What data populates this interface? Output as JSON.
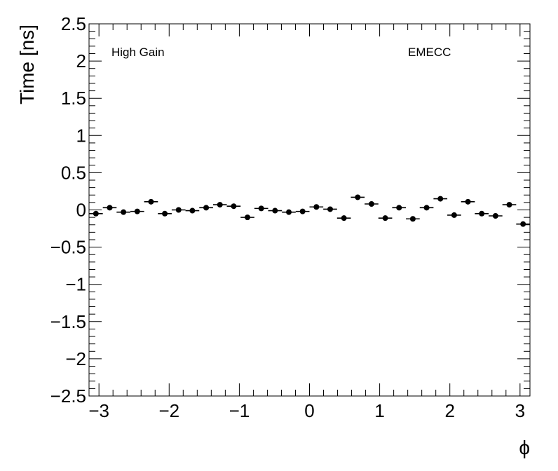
{
  "chart_data": {
    "type": "scatter",
    "title": "",
    "xlabel": "ϕ",
    "ylabel": "Time [ns]",
    "xlim": [
      -3.1416,
      3.1416
    ],
    "ylim": [
      -2.5,
      2.5
    ],
    "x_major_ticks": [
      -3,
      -2,
      -1,
      0,
      1,
      2,
      3
    ],
    "x_tick_labels": [
      "−3",
      "−2",
      "−1",
      "0",
      "1",
      "2",
      "3"
    ],
    "y_major_ticks": [
      -2.5,
      -2,
      -1.5,
      -1,
      -0.5,
      0,
      0.5,
      1,
      1.5,
      2,
      2.5
    ],
    "y_tick_labels": [
      "−2.5",
      "−2",
      "−1.5",
      "−1",
      "−0.5",
      "0",
      "0.5",
      "1",
      "1.5",
      "2",
      "2.5"
    ],
    "annotations": [
      "High Gain",
      "EMECC"
    ],
    "grid": false,
    "series": [
      {
        "marker": "filled-circle",
        "color": "#000000",
        "x_bin_half_width": 0.0982,
        "x": [
          -3.0434,
          -2.847,
          -2.6507,
          -2.4543,
          -2.258,
          -2.0617,
          -1.8653,
          -1.669,
          -1.4726,
          -1.2763,
          -1.0799,
          -0.8836,
          -0.6872,
          -0.4909,
          -0.2945,
          -0.0982,
          0.0982,
          0.2945,
          0.4909,
          0.6872,
          0.8836,
          1.0799,
          1.2763,
          1.4726,
          1.669,
          1.8653,
          2.0617,
          2.258,
          2.4543,
          2.6507,
          2.847,
          3.0434
        ],
        "values": [
          -0.05,
          0.03,
          -0.03,
          -0.02,
          0.11,
          -0.05,
          0.0,
          -0.01,
          0.03,
          0.07,
          0.05,
          -0.1,
          0.02,
          -0.01,
          -0.03,
          -0.02,
          0.04,
          0.01,
          -0.11,
          0.17,
          0.08,
          -0.11,
          0.03,
          -0.12,
          0.03,
          0.15,
          -0.07,
          0.11,
          -0.05,
          -0.08,
          0.07,
          -0.19
        ]
      }
    ]
  }
}
